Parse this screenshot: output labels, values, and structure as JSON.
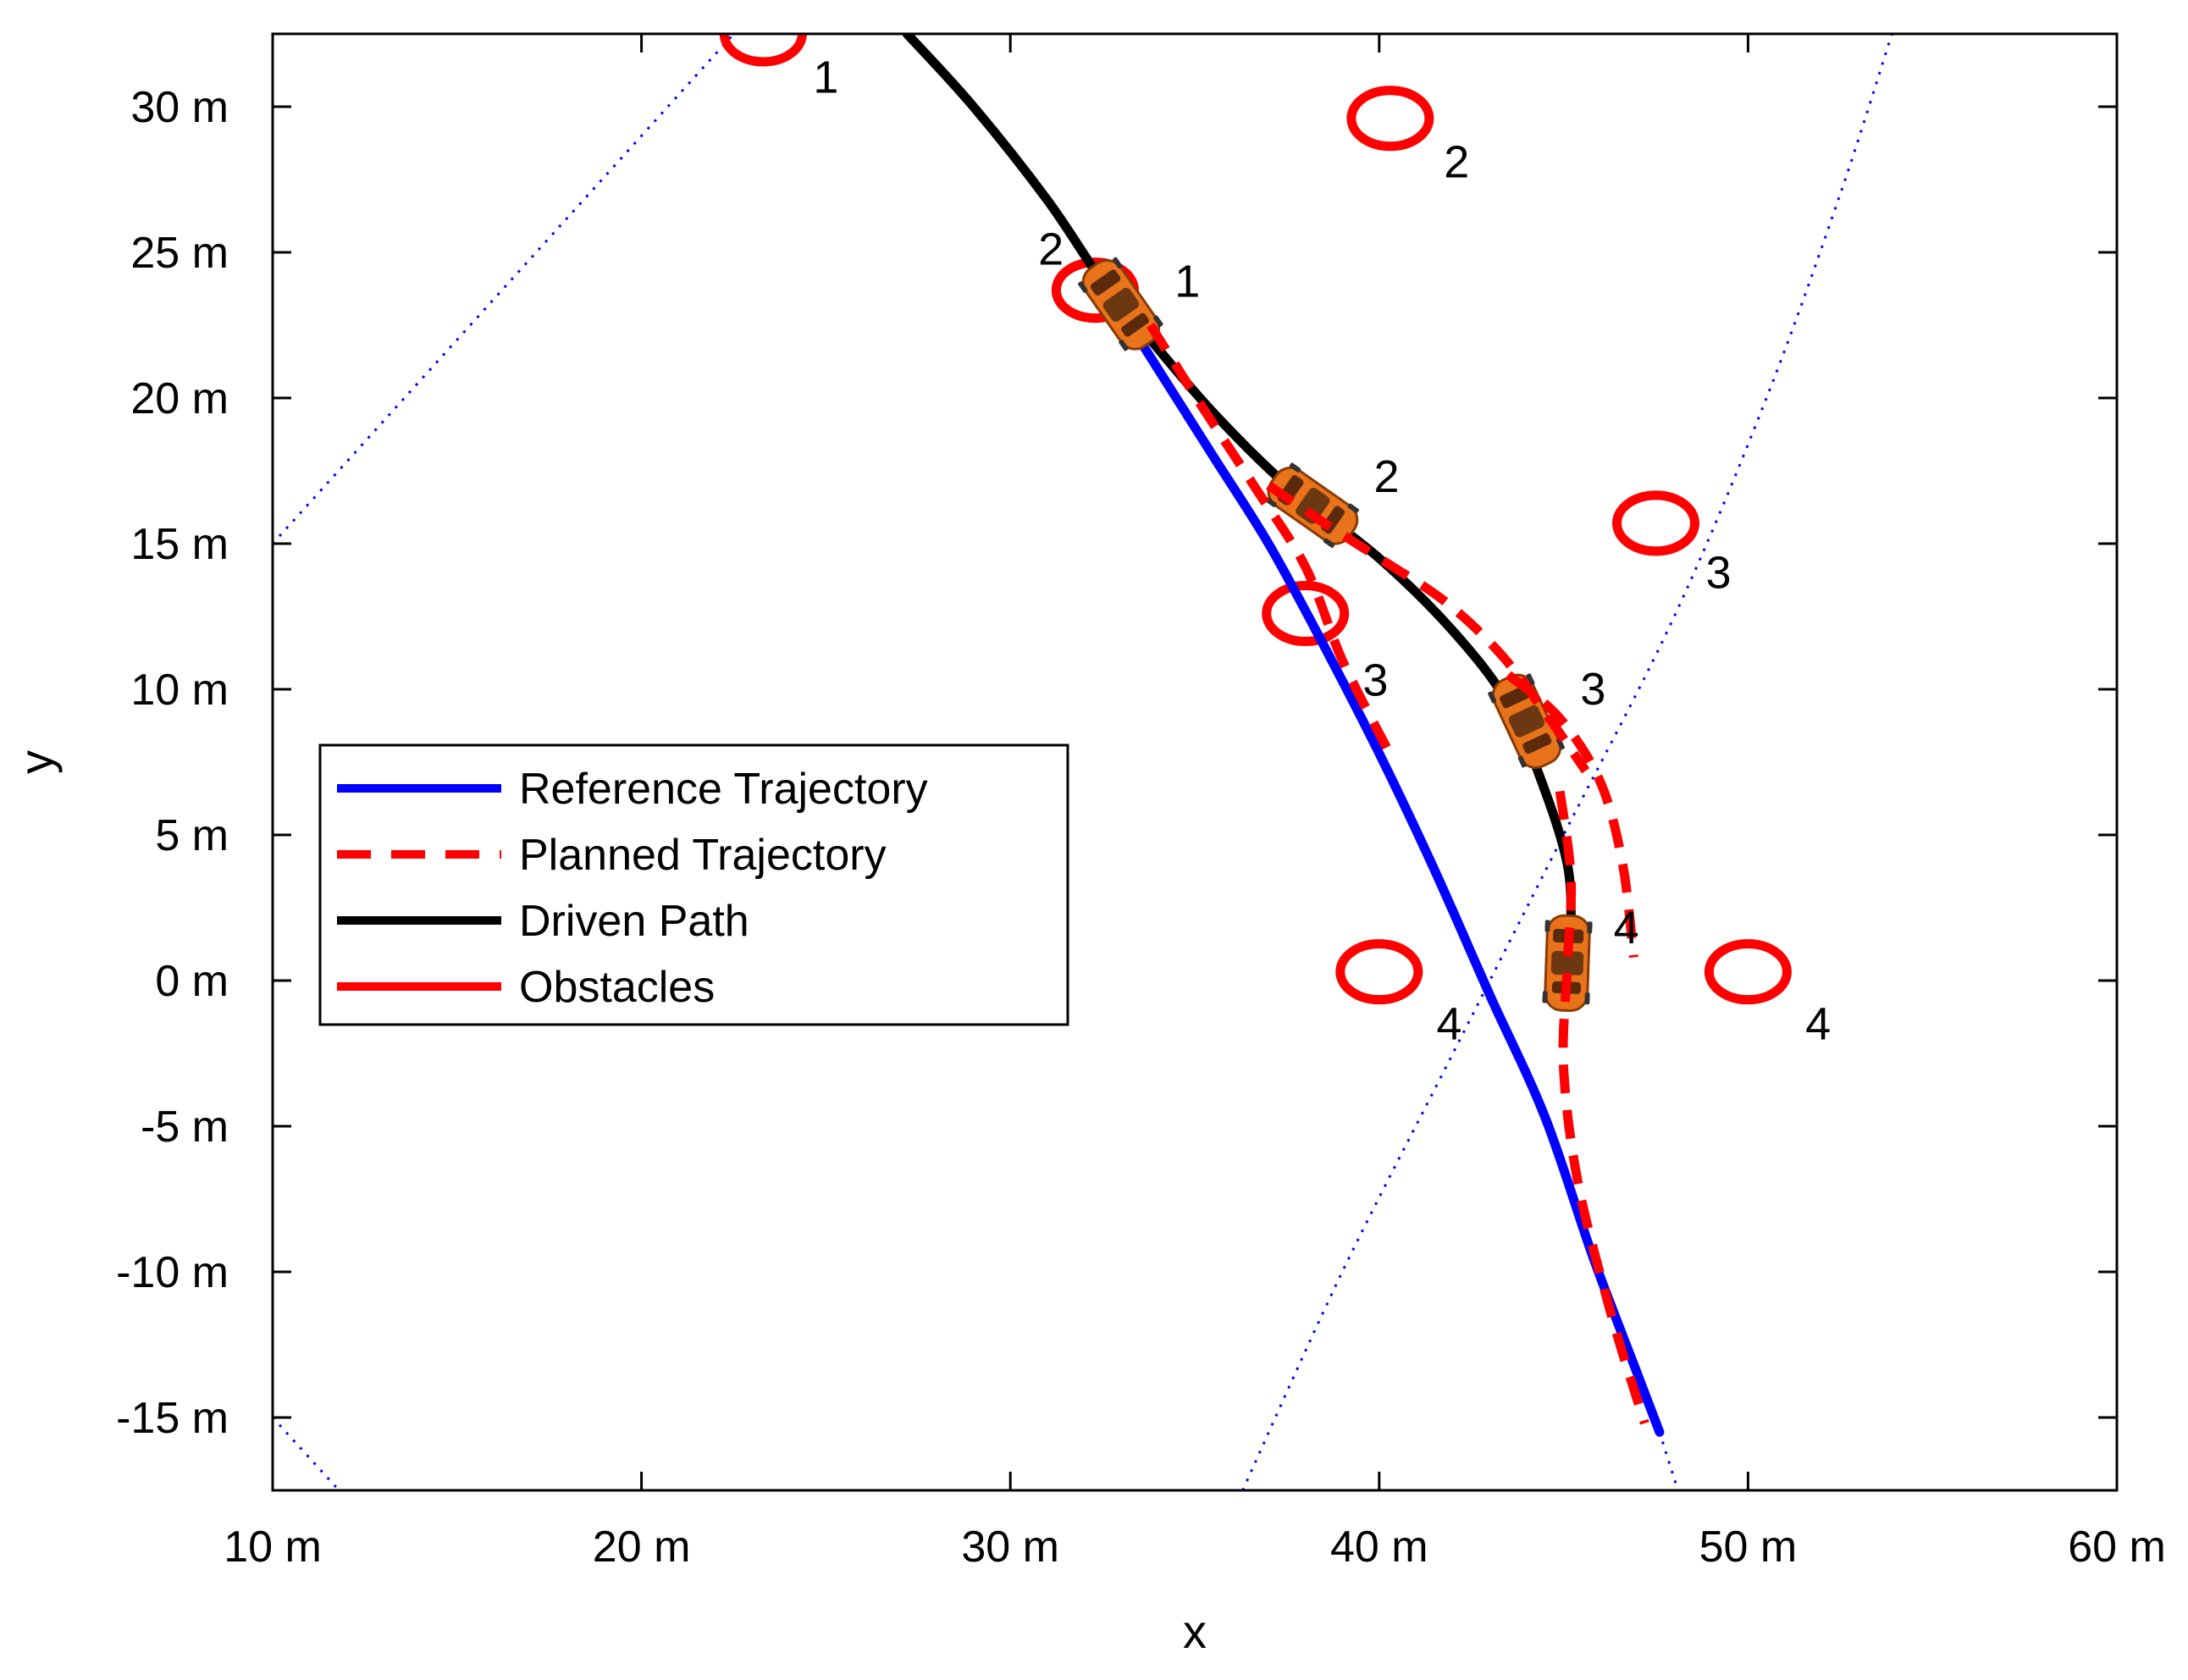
{
  "chart_data": {
    "type": "line",
    "title": "",
    "xlabel": "x",
    "ylabel": "y",
    "xlim": [
      10,
      60
    ],
    "ylim": [
      -17.5,
      32.5
    ],
    "grid": false,
    "legend_position": "middle-left",
    "x_ticks": [
      10,
      20,
      30,
      40,
      50,
      60
    ],
    "y_ticks": [
      -15,
      -10,
      -5,
      0,
      5,
      10,
      15,
      20,
      25,
      30
    ],
    "x_tick_labels": [
      "10 m",
      "20 m",
      "30 m",
      "40 m",
      "50 m",
      "60 m"
    ],
    "y_tick_labels": [
      "-15 m",
      "-10 m",
      "-5 m",
      "0 m",
      "5 m",
      "10 m",
      "15 m",
      "20 m",
      "25 m",
      "30 m"
    ],
    "series": [
      {
        "name": "Reference Trajectory",
        "color": "#0000ff",
        "style": "solid",
        "x": [
          32.5,
          34.0,
          35.5,
          37.0,
          38.5,
          40.0,
          41.5,
          43.0,
          44.5,
          45.8,
          47.0,
          47.6
        ],
        "y": [
          24.0,
          21.0,
          18.0,
          15.0,
          11.5,
          7.8,
          3.8,
          -0.5,
          -4.7,
          -9.5,
          -13.5,
          -15.5
        ]
      },
      {
        "name": "Planned Trajectory",
        "color": "#ff0000",
        "style": "dashed",
        "segments": [
          {
            "x": [
              33.8,
              35.2,
              36.6,
              38.0,
              39.0,
              40.2
            ],
            "y": [
              22.5,
              19.7,
              17.0,
              14.2,
              11.0,
              8.0
            ]
          },
          {
            "x": [
              37.0,
              38.4,
              40.0,
              41.8,
              43.3,
              44.5,
              45.6
            ],
            "y": [
              17.0,
              15.8,
              14.5,
              13.0,
              11.2,
              9.2,
              7.2
            ]
          },
          {
            "x": [
              43.5,
              44.9,
              46.0,
              46.6,
              46.9
            ],
            "y": [
              10.5,
              9.0,
              6.8,
              4.0,
              0.8
            ]
          },
          {
            "x": [
              44.9,
              45.2,
              45.1,
              45.0,
              45.4,
              46.3,
              47.2
            ],
            "y": [
              6.5,
              3.5,
              0.5,
              -3.0,
              -7.0,
              -11.5,
              -15.2
            ]
          }
        ]
      },
      {
        "name": "Driven Path",
        "color": "#000000",
        "style": "solid",
        "x": [
          27.2,
          29.0,
          31.0,
          32.5,
          33.8,
          35.5,
          37.5,
          40.0,
          42.0,
          43.5,
          44.5,
          45.1,
          45.2,
          45.1
        ],
        "y": [
          32.5,
          30.0,
          26.8,
          24.0,
          22.0,
          19.5,
          17.0,
          14.5,
          12.0,
          9.5,
          6.5,
          4.0,
          2.0,
          -0.2
        ]
      },
      {
        "name": "Obstacles",
        "color": "#ff0000",
        "style": "solid",
        "groups": [
          {
            "step": "1",
            "points": [
              {
                "x": 23.3,
                "y": 32.5
              },
              {
                "x": 32.3,
                "y": 23.7
              }
            ]
          },
          {
            "step": "2",
            "points": [
              {
                "x": 40.3,
                "y": 29.6
              },
              {
                "x": 32.3,
                "y": 23.7
              }
            ]
          },
          {
            "step": "3",
            "points": [
              {
                "x": 47.5,
                "y": 15.7
              },
              {
                "x": 38.0,
                "y": 12.6
              }
            ]
          },
          {
            "step": "4",
            "points": [
              {
                "x": 40.0,
                "y": 0.3
              },
              {
                "x": 50.0,
                "y": 0.3
              }
            ]
          }
        ]
      }
    ],
    "sensor_boundaries": [
      {
        "x": [
          10.0,
          22.5
        ],
        "y": [
          15.0,
          32.5
        ]
      },
      {
        "x": [
          10.0,
          11.8
        ],
        "y": [
          -15.0,
          -17.5
        ]
      },
      {
        "x": [
          36.3,
          39.0,
          42.0,
          45.0,
          48.0,
          50.5,
          52.5,
          53.9
        ],
        "y": [
          -17.5,
          -10.0,
          -2.5,
          5.0,
          12.5,
          20.0,
          27.0,
          32.5
        ]
      },
      {
        "x": [
          47.6,
          48.1
        ],
        "y": [
          -15.5,
          -17.5
        ]
      }
    ],
    "annotations": [
      {
        "text": "1",
        "x": 25.0,
        "y": 31.0
      },
      {
        "text": "2",
        "x": 31.1,
        "y": 25.1
      },
      {
        "text": "1",
        "x": 34.8,
        "y": 24.0
      },
      {
        "text": "2",
        "x": 42.1,
        "y": 28.1
      },
      {
        "text": "2",
        "x": 40.2,
        "y": 17.3
      },
      {
        "text": "3",
        "x": 49.2,
        "y": 14.0
      },
      {
        "text": "3",
        "x": 39.9,
        "y": 10.3
      },
      {
        "text": "3",
        "x": 45.8,
        "y": 10.0
      },
      {
        "text": "4",
        "x": 46.7,
        "y": 1.8
      },
      {
        "text": "4",
        "x": 41.9,
        "y": -1.5
      },
      {
        "text": "4",
        "x": 51.9,
        "y": -1.5
      }
    ],
    "vehicles": [
      {
        "x": 33.0,
        "y": 23.2,
        "heading_deg": -55
      },
      {
        "x": 38.2,
        "y": 16.3,
        "heading_deg": -35
      },
      {
        "x": 44.0,
        "y": 8.9,
        "heading_deg": -65
      },
      {
        "x": 45.1,
        "y": 0.6,
        "heading_deg": -92
      }
    ]
  }
}
